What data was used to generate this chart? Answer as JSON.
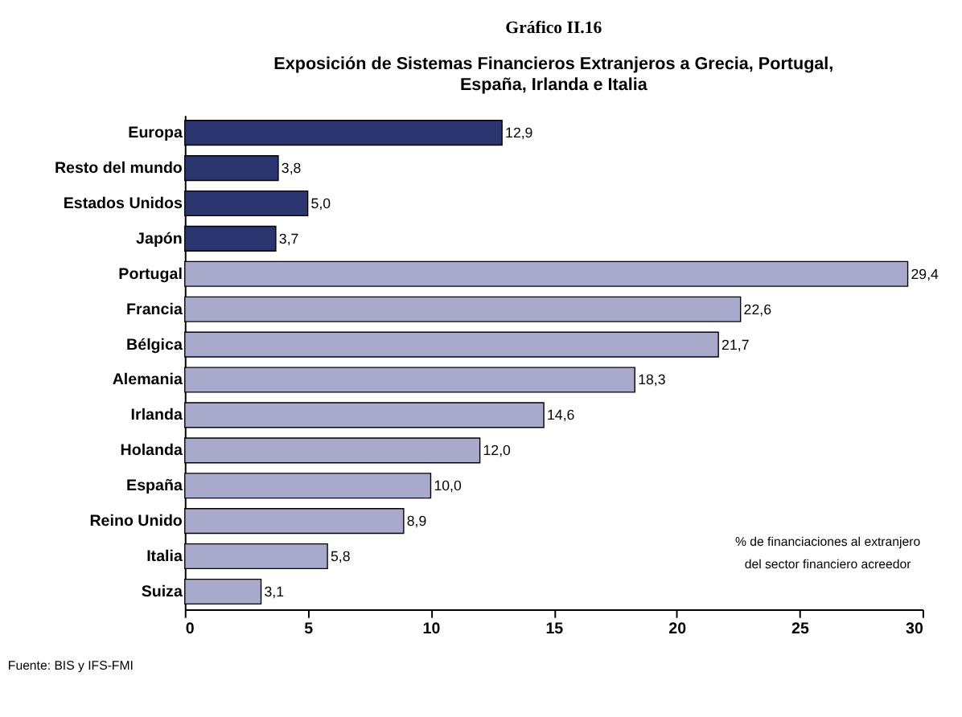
{
  "chart_data": {
    "type": "bar",
    "orientation": "horizontal",
    "title": "Gráfico II.16",
    "subtitle": "Exposición de Sistemas Financieros Extranjeros a Grecia, Portugal, España, Irlanda e Italia",
    "categories": [
      "Europa",
      "Resto del mundo",
      "Estados Unidos",
      "Japón",
      "Portugal",
      "Francia",
      "Bélgica",
      "Alemania",
      "Irlanda",
      "Holanda",
      "España",
      "Reino Unido",
      "Italia",
      "Suiza"
    ],
    "values": [
      12.9,
      3.8,
      5.0,
      3.7,
      29.4,
      22.6,
      21.7,
      18.3,
      14.6,
      12.0,
      10.0,
      8.9,
      5.8,
      3.1
    ],
    "value_labels": [
      "12,9",
      "3,8",
      "5,0",
      "3,7",
      "29,4",
      "22,6",
      "21,7",
      "18,3",
      "14,6",
      "12,0",
      "10,0",
      "8,9",
      "5,8",
      "3,1"
    ],
    "colors": [
      "#2b3670",
      "#2b3670",
      "#2b3670",
      "#2b3670",
      "#a9aacb",
      "#a9aacb",
      "#a9aacb",
      "#a9aacb",
      "#a9aacb",
      "#a9aacb",
      "#a9aacb",
      "#a9aacb",
      "#a9aacb",
      "#a9aacb"
    ],
    "xlim": [
      0,
      30
    ],
    "xticks": [
      0,
      5,
      10,
      15,
      20,
      25,
      30
    ],
    "grid": false,
    "annotations": [
      "% de financiaciones al extranjero",
      "del sector financiero acreedor",
      "Fuente: BIS y IFS-FMI"
    ]
  }
}
